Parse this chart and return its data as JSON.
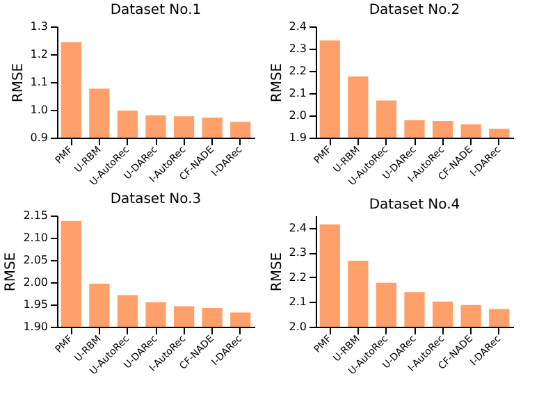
{
  "chart_data": [
    {
      "type": "bar",
      "title": "Dataset No.1",
      "ylabel": "RMSE",
      "categories": [
        "PMF",
        "U-RBM",
        "U-AutoRec",
        "U-DARec",
        "I-AutoRec",
        "CF-NADE",
        "I-DARec"
      ],
      "values": [
        1.244,
        1.076,
        0.997,
        0.98,
        0.977,
        0.972,
        0.957
      ],
      "color": "#ff9f6a",
      "ylim": [
        0.9,
        1.3
      ],
      "yticks": [
        0.9,
        {
          "value": 1.0,
          "label": "1.0"
        },
        1.1,
        1.2,
        1.3
      ]
    },
    {
      "type": "bar",
      "title": "Dataset No.2",
      "ylabel": "RMSE",
      "categories": [
        "PMF",
        "U-RBM",
        "U-AutoRec",
        "U-DARec",
        "I-AutoRec",
        "CF-NADE",
        "I-DARec"
      ],
      "values": [
        2.337,
        2.175,
        2.067,
        1.978,
        1.975,
        1.96,
        1.94
      ],
      "color": "#ff9f6a",
      "ylim": [
        1.9,
        2.4
      ],
      "yticks": [
        1.9,
        {
          "value": 2.0,
          "label": "2.0"
        },
        2.1,
        2.2,
        2.3,
        2.4
      ]
    },
    {
      "type": "bar",
      "title": "Dataset No.3",
      "ylabel": "RMSE",
      "categories": [
        "PMF",
        "U-RBM",
        "U-AutoRec",
        "U-DARec",
        "I-AutoRec",
        "CF-NADE",
        "I-DARec"
      ],
      "values": [
        2.138,
        1.997,
        1.971,
        1.955,
        1.946,
        1.942,
        1.932
      ],
      "color": "#ff9f6a",
      "ylim": [
        1.9,
        2.15
      ],
      "yticks": [
        {
          "value": 1.9,
          "label": "1.90"
        },
        1.95,
        {
          "value": 2.0,
          "label": "2.00"
        },
        2.05,
        {
          "value": 2.1,
          "label": "2.10"
        },
        2.15
      ]
    },
    {
      "type": "bar",
      "title": "Dataset No.4",
      "ylabel": "RMSE",
      "categories": [
        "PMF",
        "U-RBM",
        "U-AutoRec",
        "U-DARec",
        "I-AutoRec",
        "CF-NADE",
        "I-DARec"
      ],
      "values": [
        2.414,
        2.267,
        2.178,
        2.14,
        2.102,
        2.088,
        2.072
      ],
      "color": "#ff9f6a",
      "ylim": [
        2.0,
        2.45
      ],
      "yticks": [
        {
          "value": 2.0,
          "label": "2.0"
        },
        2.1,
        2.2,
        2.3,
        2.4
      ]
    }
  ]
}
